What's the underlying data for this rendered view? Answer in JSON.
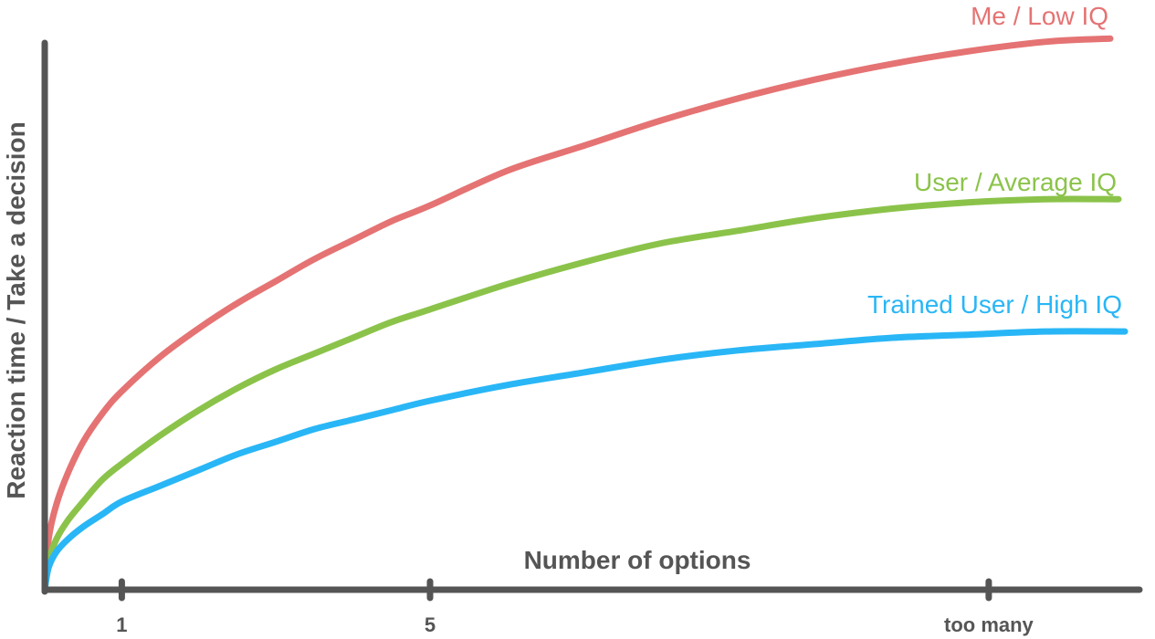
{
  "chart_data": {
    "type": "line",
    "title": "",
    "xlabel": "Number of options",
    "ylabel": "Reaction time / Take a decision",
    "x_tick_labels": [
      "1",
      "5",
      "too many"
    ],
    "grid": false,
    "legend": "labels at line ends",
    "series": [
      {
        "name": "Me / Low IQ",
        "color": "#e57373",
        "x": [
          0,
          0.05,
          0.15,
          0.3,
          0.5,
          0.75,
          1,
          1.5,
          2,
          2.5,
          3,
          3.5,
          4,
          4.5,
          5,
          6,
          7,
          8,
          9,
          10,
          11,
          12,
          13,
          14
        ],
        "y": [
          0,
          16,
          27,
          37,
          47,
          56,
          63,
          74,
          83,
          91,
          98,
          105,
          111,
          117,
          122,
          133,
          141,
          149,
          156,
          162,
          167,
          171,
          174,
          175
        ]
      },
      {
        "name": "User / Average IQ",
        "color": "#8bc34a",
        "x": [
          0,
          0.05,
          0.15,
          0.3,
          0.5,
          0.75,
          1,
          1.5,
          2,
          2.5,
          3,
          3.5,
          4,
          4.5,
          5,
          6,
          7,
          8,
          9,
          10,
          11,
          12,
          13,
          14
        ],
        "y": [
          0,
          9,
          16,
          22,
          28,
          35,
          40,
          49,
          57,
          64,
          70,
          75,
          80,
          85,
          89,
          97,
          104,
          110,
          114,
          118,
          121,
          123,
          124,
          124
        ]
      },
      {
        "name": "Trained User / High IQ",
        "color": "#29b6f6",
        "x": [
          0,
          0.05,
          0.15,
          0.3,
          0.5,
          0.75,
          1,
          1.5,
          2,
          2.5,
          3,
          3.5,
          4,
          4.5,
          5,
          6,
          7,
          8,
          9,
          10,
          11,
          12,
          13,
          14
        ],
        "y": [
          0,
          7,
          12,
          16,
          20,
          24,
          28,
          33,
          38,
          43,
          47,
          51,
          54,
          57,
          60,
          65,
          69,
          73,
          76,
          78,
          80,
          81,
          82,
          82
        ]
      }
    ],
    "axis_color": "#555555"
  }
}
